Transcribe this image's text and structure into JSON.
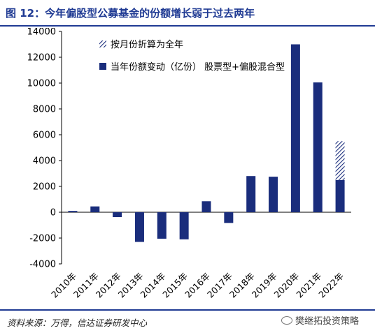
{
  "header": {
    "title": "图 12：今年偏股型公募基金的份额增长弱于过去两年"
  },
  "footer": {
    "source": "资料来源：万得，信达证券研发中心",
    "watermark": "樊继拓投资策略"
  },
  "colors": {
    "bar": "#1a2d7c",
    "accent": "#1f3a93",
    "axis": "#000000"
  },
  "chart_data": {
    "type": "bar",
    "categories": [
      "2010年",
      "2011年",
      "2012年",
      "2013年",
      "2014年",
      "2015年",
      "2016年",
      "2017年",
      "2018年",
      "2019年",
      "2020年",
      "2021年",
      "2022年"
    ],
    "series": [
      {
        "name": "当年份额变动（亿份） 股票型+偏股混合型",
        "values": [
          100,
          450,
          -380,
          -2300,
          -2050,
          -2100,
          850,
          -830,
          2800,
          2750,
          13000,
          10050,
          2500
        ],
        "style": "solid"
      },
      {
        "name": "按月份折算为全年",
        "values": [
          null,
          null,
          null,
          null,
          null,
          null,
          null,
          null,
          null,
          null,
          null,
          null,
          3000
        ],
        "style": "hatched",
        "stacked_on": "当年份额变动（亿份） 股票型+偏股混合型"
      }
    ],
    "y_ticks": [
      -4000,
      -2000,
      0,
      2000,
      4000,
      6000,
      8000,
      10000,
      12000,
      14000
    ],
    "ylim": [
      -4000,
      14000
    ],
    "grid": false,
    "legend_position": "top-left"
  }
}
